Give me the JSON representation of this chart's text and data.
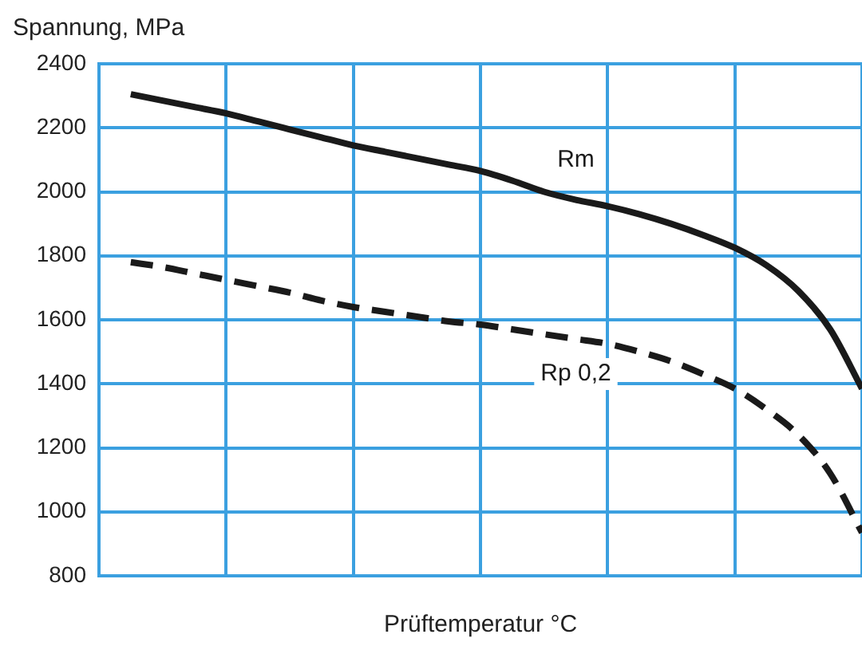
{
  "chart_data": {
    "type": "line",
    "ylabel": "Spannung, MPa",
    "xlabel": "Prüftemperatur °C",
    "categories": [
      null,
      null,
      null,
      null,
      null,
      null,
      null,
      null,
      null,
      null,
      null,
      null,
      null,
      null,
      null,
      null,
      null,
      null,
      null,
      null,
      null,
      null,
      null,
      null,
      null
    ],
    "series": [
      {
        "name": "Rm",
        "color": "#1a1a1a",
        "line_style": "solid",
        "values": [
          null,
          2305,
          2285,
          2265,
          2245,
          2220,
          2195,
          2170,
          2145,
          2125,
          2105,
          2085,
          2065,
          2035,
          2000,
          1975,
          1955,
          1930,
          1900,
          1865,
          1825,
          1770,
          1690,
          1570,
          1385
        ]
      },
      {
        "name": "Rp 0,2",
        "color": "#1a1a1a",
        "line_style": "dashed",
        "values": [
          null,
          1780,
          1765,
          1745,
          1725,
          1705,
          1685,
          1660,
          1640,
          1625,
          1610,
          1595,
          1585,
          1570,
          1555,
          1540,
          1525,
          1500,
          1470,
          1430,
          1385,
          1320,
          1240,
          1120,
          935
        ]
      }
    ],
    "ylim": [
      800,
      2400
    ],
    "yticks": [
      800,
      1000,
      1200,
      1400,
      1600,
      1800,
      2000,
      2200,
      2400
    ],
    "grid": true,
    "tick_labels": "y",
    "marker": "none",
    "legend": false
  }
}
